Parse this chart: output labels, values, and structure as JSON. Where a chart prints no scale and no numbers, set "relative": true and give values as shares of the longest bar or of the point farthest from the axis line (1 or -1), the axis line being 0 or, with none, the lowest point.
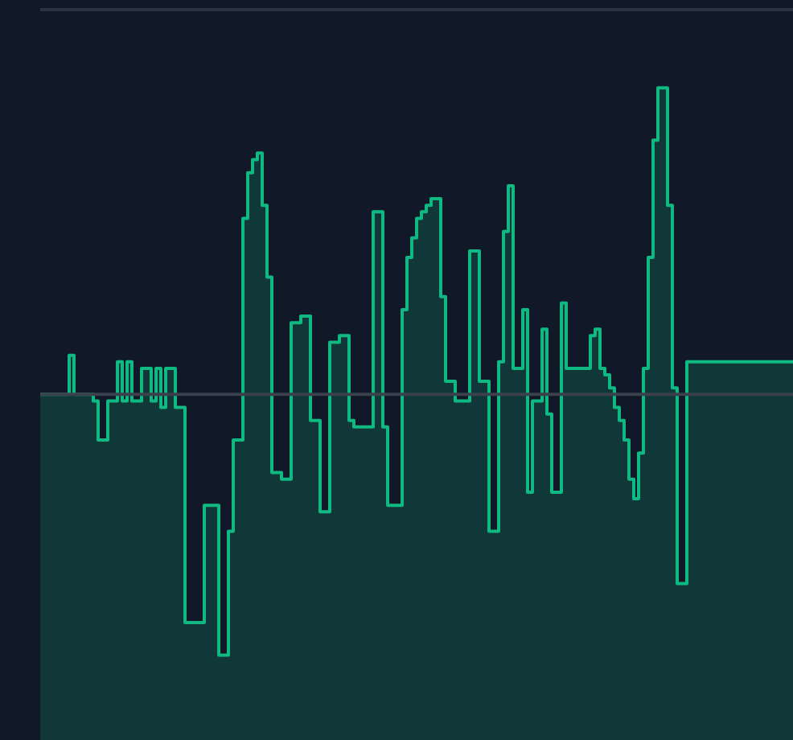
{
  "chart_data": {
    "type": "area",
    "relative": true,
    "tick_labels": false,
    "color": "#10b981",
    "categories": [
      null,
      null,
      null,
      null,
      null,
      null,
      null,
      null,
      null,
      null,
      null,
      null,
      null,
      null,
      null,
      null,
      null,
      null,
      null,
      null,
      null,
      null,
      null,
      null,
      null,
      null,
      null,
      null,
      null,
      null,
      null,
      null,
      null,
      null,
      null,
      null,
      null,
      null,
      null,
      null,
      null,
      null,
      null,
      null,
      null,
      null,
      null,
      null,
      null,
      null,
      null,
      null,
      null,
      null,
      null,
      null,
      null,
      null,
      null,
      null,
      null,
      null,
      null,
      null,
      null,
      null,
      null,
      null,
      null,
      null,
      null,
      null,
      null,
      null,
      null,
      null,
      null,
      null,
      null,
      null,
      null,
      null,
      null,
      null,
      null,
      null,
      null,
      null,
      null,
      null,
      null,
      null,
      null,
      null,
      null,
      null,
      null,
      null,
      null,
      null,
      null,
      null,
      null,
      null,
      null,
      null,
      null,
      null,
      null,
      null,
      null,
      null,
      null,
      null,
      null,
      null,
      null,
      null,
      null,
      null,
      null,
      null,
      null,
      null,
      null,
      null,
      null,
      null,
      null,
      null,
      null,
      null,
      null,
      null,
      null,
      null,
      null,
      null,
      null,
      null,
      null,
      null,
      null,
      null,
      null,
      null,
      null,
      null,
      null,
      null,
      null,
      null,
      null,
      null,
      null,
      null,
      null
    ],
    "values": [
      0.53,
      0.53,
      0.53,
      0.53,
      0.53,
      0.53,
      0.59,
      0.53,
      0.53,
      0.53,
      0.53,
      0.52,
      0.46,
      0.46,
      0.52,
      0.52,
      0.58,
      0.52,
      0.58,
      0.52,
      0.52,
      0.57,
      0.57,
      0.52,
      0.57,
      0.51,
      0.57,
      0.57,
      0.51,
      0.51,
      0.18,
      0.18,
      0.18,
      0.18,
      0.36,
      0.36,
      0.36,
      0.13,
      0.13,
      0.32,
      0.46,
      0.46,
      0.8,
      0.87,
      0.89,
      0.9,
      0.82,
      0.71,
      0.41,
      0.41,
      0.4,
      0.4,
      0.64,
      0.64,
      0.65,
      0.65,
      0.49,
      0.49,
      0.35,
      0.35,
      0.61,
      0.61,
      0.62,
      0.62,
      0.49,
      0.48,
      0.48,
      0.48,
      0.48,
      0.81,
      0.81,
      0.48,
      0.36,
      0.36,
      0.36,
      0.66,
      0.74,
      0.77,
      0.8,
      0.81,
      0.82,
      0.83,
      0.83,
      0.68,
      0.55,
      0.55,
      0.52,
      0.52,
      0.52,
      0.75,
      0.75,
      0.55,
      0.55,
      0.32,
      0.32,
      0.58,
      0.78,
      0.85,
      0.57,
      0.57,
      0.66,
      0.38,
      0.52,
      0.52,
      0.63,
      0.5,
      0.38,
      0.38,
      0.67,
      0.57,
      0.57,
      0.57,
      0.57,
      0.57,
      0.62,
      0.63,
      0.57,
      0.56,
      0.54,
      0.51,
      0.49,
      0.46,
      0.4,
      0.37,
      0.44,
      0.57,
      0.74,
      0.92,
      1.0,
      1.0,
      0.82,
      0.54,
      0.24,
      0.24,
      0.58,
      0.58,
      0.58,
      0.58,
      0.58,
      0.58,
      0.58,
      0.58,
      0.58,
      0.58,
      0.58,
      0.58,
      0.58,
      0.58,
      0.58,
      0.58,
      0.58,
      0.58,
      0.58,
      0.58,
      0.58,
      0.58,
      0.58
    ],
    "ref_lines": [
      {
        "axis": "y",
        "value": 1.12,
        "color": "#2b3042"
      },
      {
        "axis": "y",
        "value": 0.53,
        "color": "#3b404d"
      }
    ]
  }
}
